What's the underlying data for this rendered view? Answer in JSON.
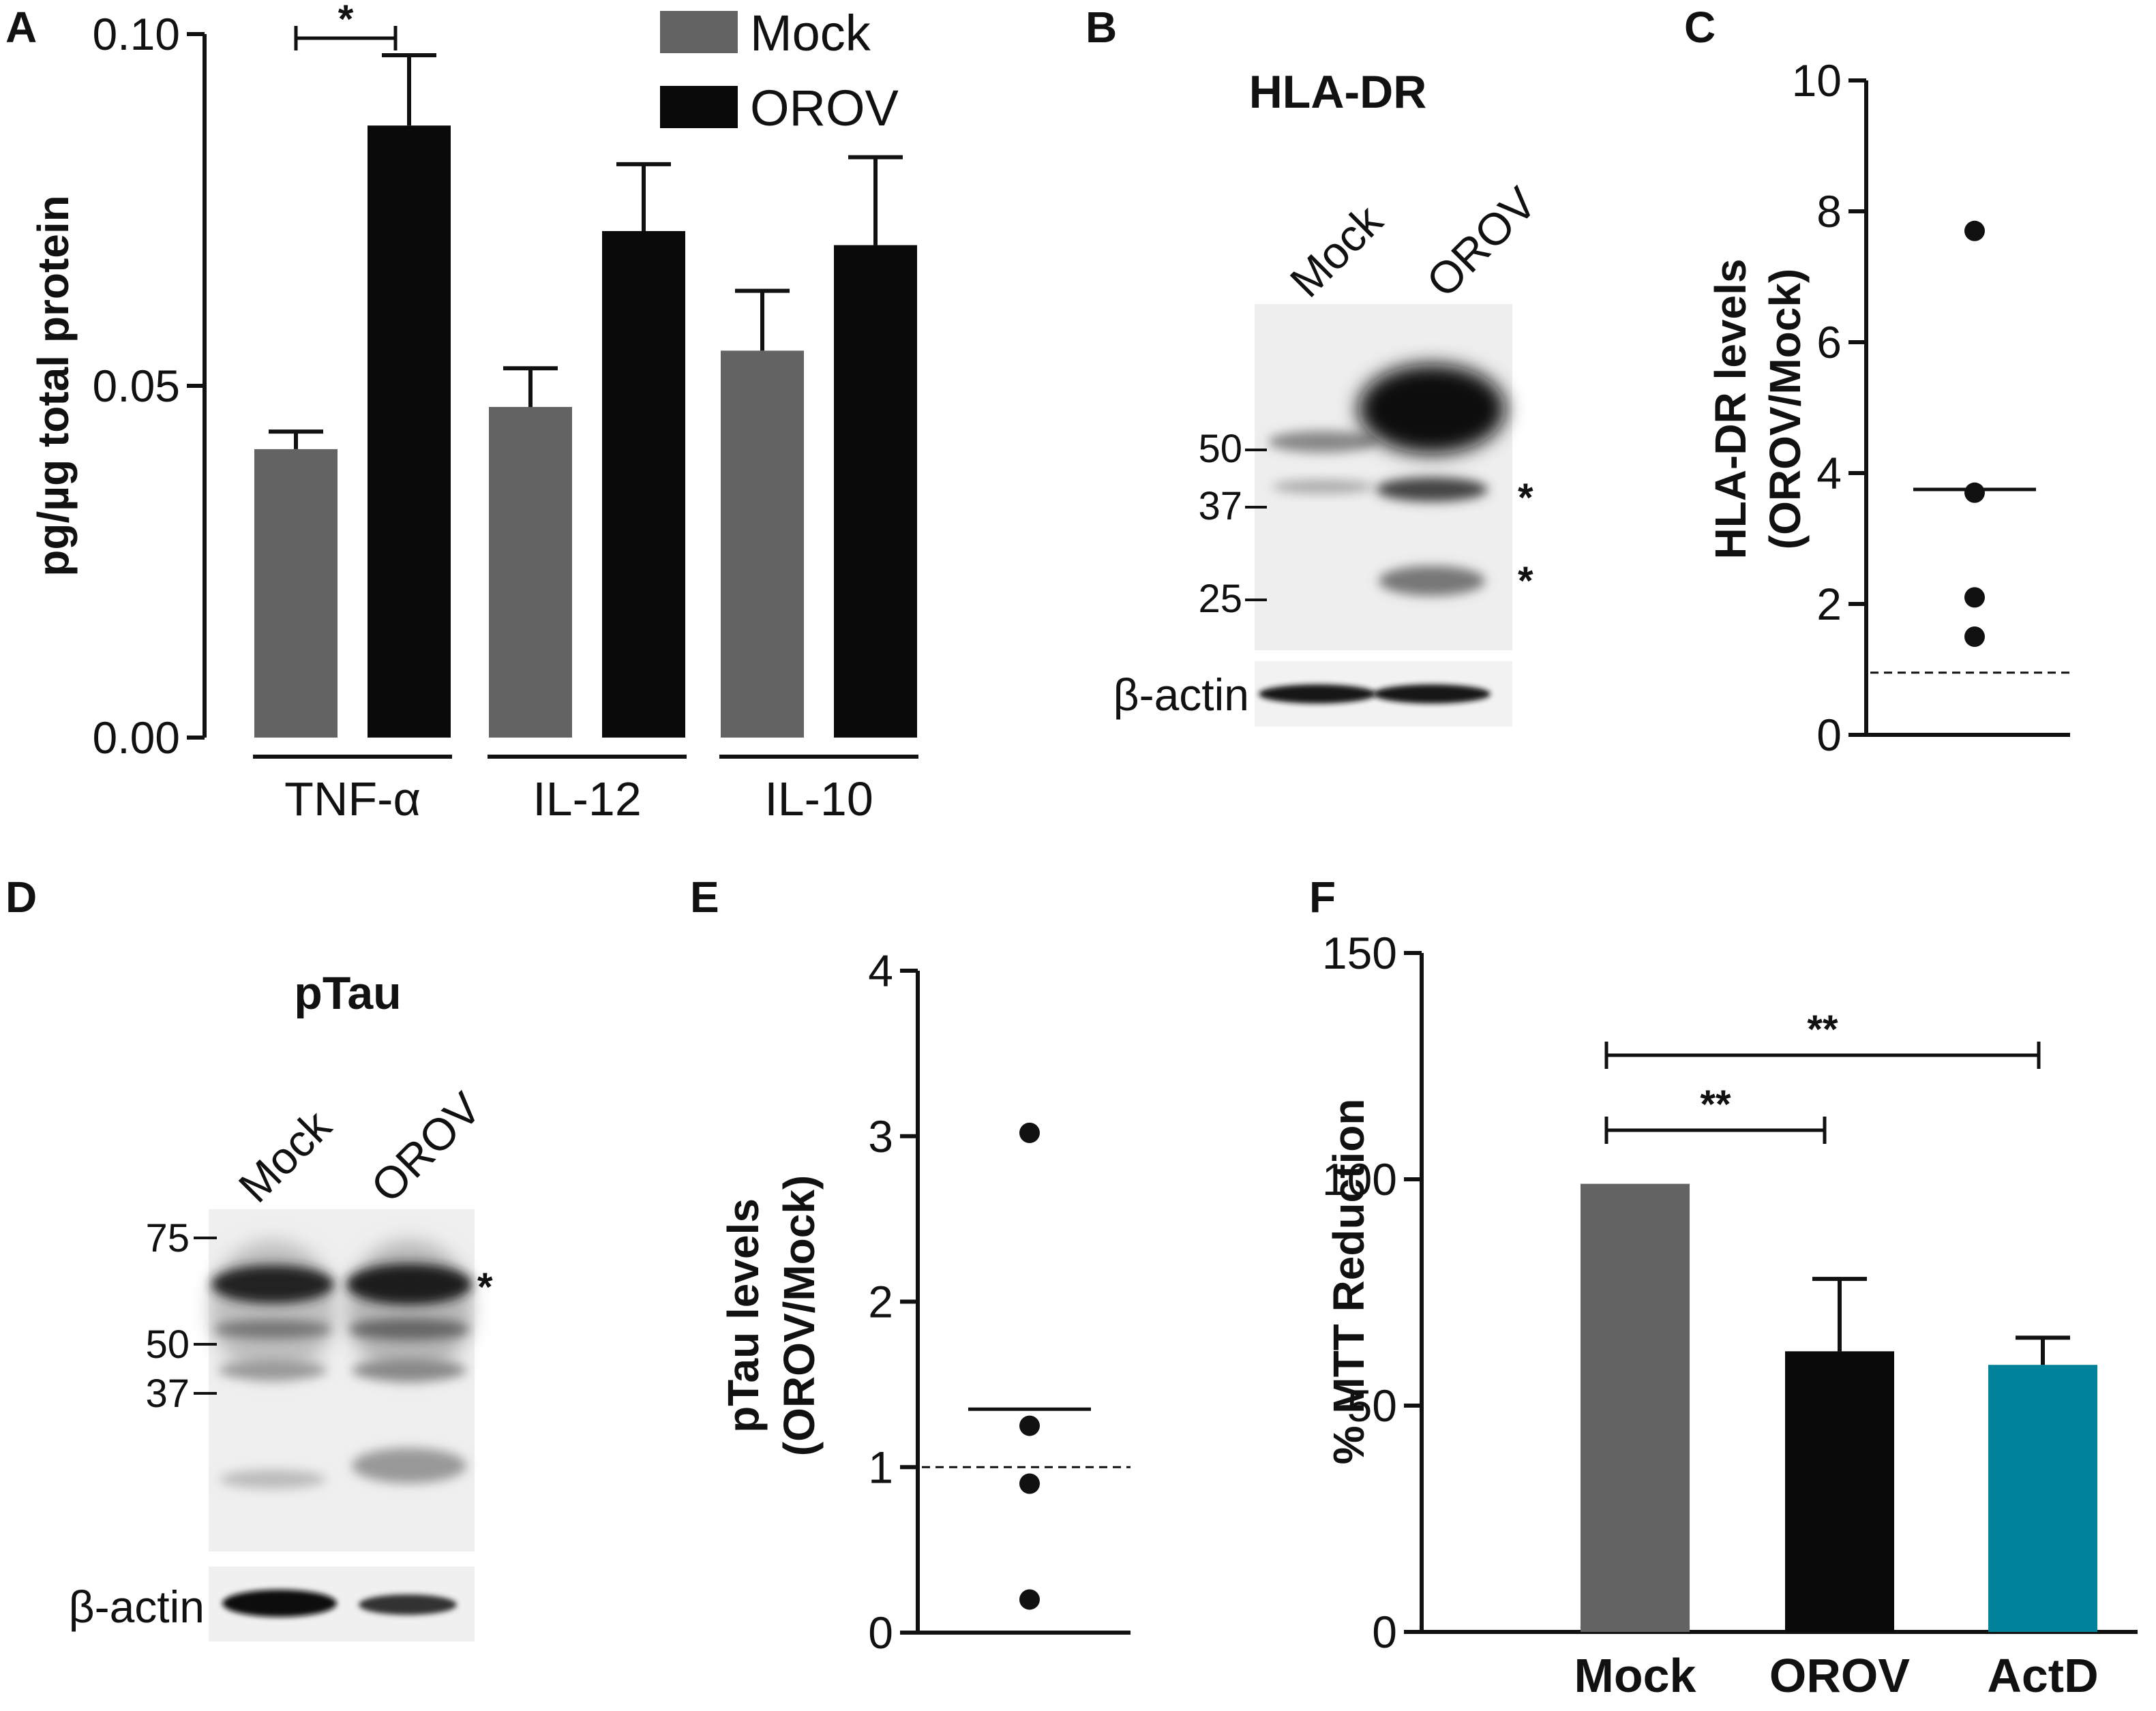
{
  "panels": {
    "A": {
      "letter": "A",
      "chart_data": {
        "type": "bar",
        "ylabel": "pg/µg total protein",
        "ylim": [
          0,
          0.1
        ],
        "yticks": [
          "0.00",
          "0.05",
          "0.10"
        ],
        "categories": [
          "TNF-α",
          "IL-12",
          "IL-10"
        ],
        "series": [
          {
            "name": "Mock",
            "values": [
              0.041,
              0.047,
              0.055
            ],
            "errors": [
              0.0025,
              0.0055,
              0.0085
            ],
            "color": "#636363"
          },
          {
            "name": "OROV",
            "values": [
              0.087,
              0.072,
              0.07
            ],
            "errors": [
              0.01,
              0.0095,
              0.0125
            ],
            "color": "#0a0a0a"
          }
        ],
        "annotations": [
          {
            "text": "*",
            "between": [
              "TNF-α Mock",
              "TNF-α OROV"
            ]
          }
        ],
        "legend_position": "top-right"
      }
    },
    "B": {
      "letter": "B",
      "title": "HLA-DR",
      "lanes": [
        "Mock",
        "OROV"
      ],
      "markers": [
        "50",
        "37",
        "25"
      ],
      "band_stars": [
        "*",
        "*"
      ],
      "loading_control": "β-actin"
    },
    "C": {
      "letter": "C",
      "chart_data": {
        "type": "scatter",
        "ylabel_lines": [
          "HLA-DR levels",
          "(OROV/Mock)"
        ],
        "ylim": [
          0,
          10
        ],
        "yticks": [
          "0",
          "2",
          "4",
          "6",
          "8",
          "10"
        ],
        "points": [
          7.7,
          3.7,
          2.1,
          1.5
        ],
        "mean": 3.75,
        "reference_line": 0.95
      }
    },
    "D": {
      "letter": "D",
      "title": "pTau",
      "lanes": [
        "Mock",
        "OROV"
      ],
      "markers": [
        "75",
        "50",
        "37"
      ],
      "band_stars": [
        "*"
      ],
      "loading_control": "β-actin"
    },
    "E": {
      "letter": "E",
      "chart_data": {
        "type": "scatter",
        "ylabel_lines": [
          "pTau levels",
          "(OROV/Mock)"
        ],
        "ylim": [
          0,
          4
        ],
        "yticks": [
          "0",
          "1",
          "2",
          "3",
          "4"
        ],
        "points": [
          3.02,
          1.25,
          0.9,
          0.2
        ],
        "mean": 1.35,
        "reference_line": 1.0
      }
    },
    "F": {
      "letter": "F",
      "chart_data": {
        "type": "bar",
        "ylabel": "% MTT Reduction",
        "ylim": [
          0,
          150
        ],
        "yticks": [
          "0",
          "50",
          "100",
          "150"
        ],
        "categories": [
          "Mock",
          "OROV",
          "ActD"
        ],
        "values": [
          99,
          62,
          59
        ],
        "errors": [
          0,
          16,
          6
        ],
        "colors": [
          "#636363",
          "#0a0a0a",
          "#00829a"
        ],
        "annotations": [
          {
            "text": "**",
            "between": [
              "Mock",
              "ActD"
            ]
          },
          {
            "text": "**",
            "between": [
              "Mock",
              "OROV"
            ]
          }
        ]
      }
    }
  }
}
